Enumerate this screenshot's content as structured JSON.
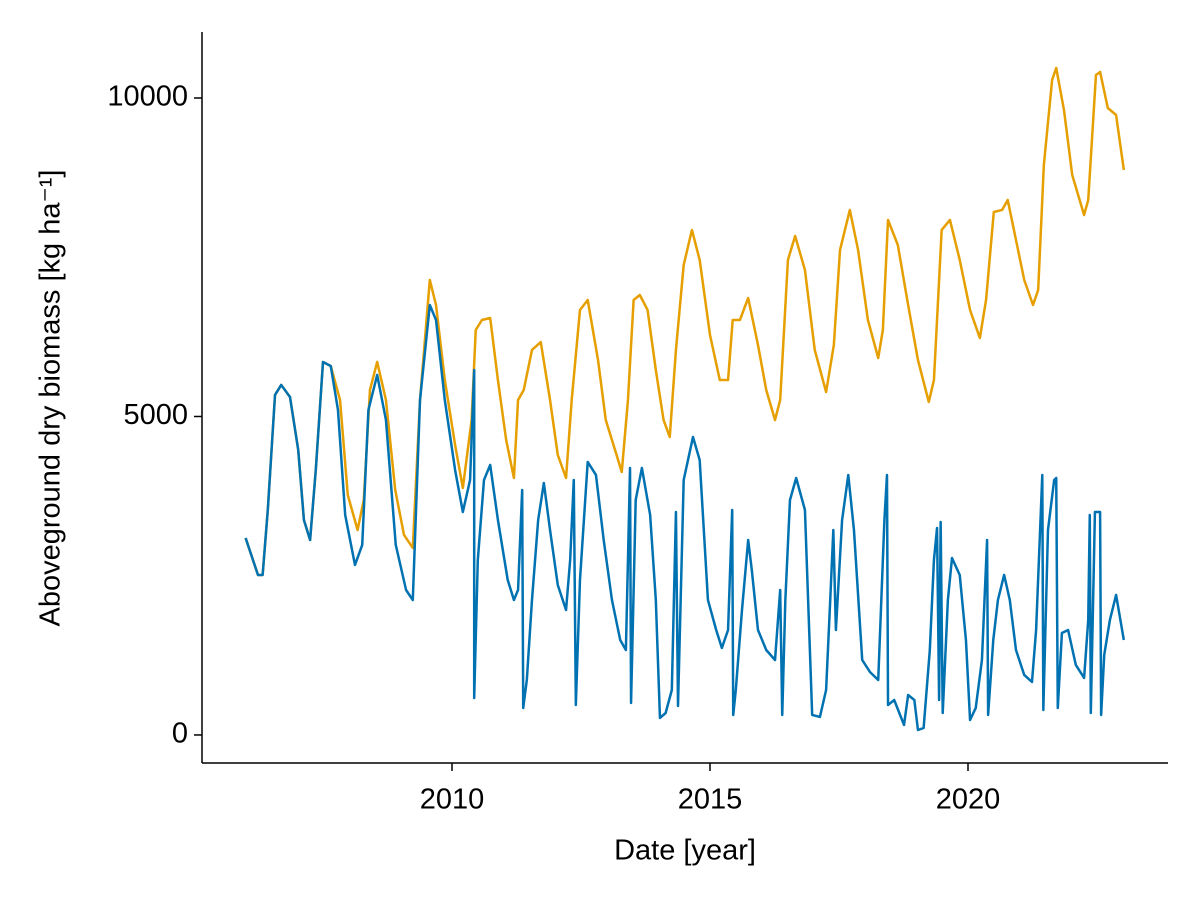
{
  "chart_data": {
    "type": "line",
    "xlabel": "Date [year]",
    "ylabel": "Aboveground dry biomass [kg ha⁻¹]",
    "xlim": [
      2005.155,
      2023.876
    ],
    "xticks": [
      2010,
      2015,
      2020
    ],
    "ylim": [
      -440,
      11036
    ],
    "yticks": [
      0,
      5000,
      10000
    ],
    "grid": false,
    "series": [
      {
        "color": "#e69f00",
        "x": [
          2006.0,
          2006.24,
          2006.33,
          2006.43,
          2006.57,
          2006.69,
          2006.86,
          2007.02,
          2007.13,
          2007.25,
          2007.36,
          2007.5,
          2007.65,
          2007.83,
          2007.98,
          2008.17,
          2008.29,
          2008.41,
          2008.55,
          2008.72,
          2008.9,
          2009.07,
          2009.24,
          2009.38,
          2009.57,
          2009.69,
          2009.86,
          2010.06,
          2010.21,
          2010.38,
          2010.46,
          2010.58,
          2010.74,
          2010.89,
          2011.05,
          2011.2,
          2011.28,
          2011.39,
          2011.55,
          2011.72,
          2011.9,
          2012.05,
          2012.21,
          2012.32,
          2012.48,
          2012.63,
          2012.83,
          2012.98,
          2013.16,
          2013.29,
          2013.41,
          2013.52,
          2013.64,
          2013.79,
          2013.95,
          2014.1,
          2014.22,
          2014.34,
          2014.49,
          2014.65,
          2014.8,
          2015.0,
          2015.19,
          2015.35,
          2015.44,
          2015.58,
          2015.74,
          2015.93,
          2016.09,
          2016.26,
          2016.36,
          2016.51,
          2016.65,
          2016.84,
          2017.03,
          2017.25,
          2017.4,
          2017.52,
          2017.71,
          2017.87,
          2018.06,
          2018.26,
          2018.35,
          2018.45,
          2018.64,
          2018.84,
          2019.03,
          2019.24,
          2019.34,
          2019.49,
          2019.65,
          2019.84,
          2020.04,
          2020.23,
          2020.35,
          2020.5,
          2020.66,
          2020.77,
          2020.93,
          2021.09,
          2021.26,
          2021.36,
          2021.47,
          2021.63,
          2021.71,
          2021.86,
          2022.02,
          2022.25,
          2022.33,
          2022.48,
          2022.56,
          2022.71,
          2022.87,
          2023.02
        ],
        "values": [
          3093,
          2512,
          2512,
          3532,
          5338,
          5495,
          5306,
          4474,
          3375,
          3061,
          4160,
          5856,
          5793,
          5259,
          3768,
          3218,
          3689,
          5416,
          5856,
          5259,
          3846,
          3140,
          2936,
          5259,
          7143,
          6750,
          5573,
          4553,
          3878,
          4945,
          6358,
          6515,
          6546,
          5573,
          4631,
          4034,
          5259,
          5416,
          6044,
          6169,
          5259,
          4396,
          4034,
          5259,
          6672,
          6829,
          5887,
          4945,
          4474,
          4129,
          5259,
          6829,
          6907,
          6672,
          5730,
          4945,
          4678,
          6044,
          7378,
          7928,
          7457,
          6279,
          5573,
          5573,
          6515,
          6515,
          6860,
          6122,
          5416,
          4945,
          5259,
          7457,
          7834,
          7300,
          6044,
          5385,
          6122,
          7614,
          8242,
          7614,
          6515,
          5918,
          6358,
          8085,
          7692,
          6750,
          5887,
          5228,
          5573,
          7928,
          8085,
          7457,
          6672,
          6232,
          6829,
          8210,
          8242,
          8399,
          7771,
          7143,
          6750,
          6986,
          8948,
          10283,
          10471,
          9812,
          8791,
          8163,
          8399,
          10361,
          10408,
          9843,
          9733,
          8870
        ]
      },
      {
        "color": "#0072b2",
        "x": [
          2006.0,
          2006.24,
          2006.33,
          2006.43,
          2006.57,
          2006.69,
          2006.86,
          2007.02,
          2007.13,
          2007.25,
          2007.36,
          2007.5,
          2007.65,
          2007.79,
          2007.93,
          2008.12,
          2008.26,
          2008.38,
          2008.55,
          2008.72,
          2008.91,
          2009.11,
          2009.24,
          2009.38,
          2009.57,
          2009.69,
          2009.86,
          2010.06,
          2010.21,
          2010.35,
          2010.43,
          2010.43,
          2010.5,
          2010.62,
          2010.74,
          2010.89,
          2011.08,
          2011.2,
          2011.28,
          2011.36,
          2011.38,
          2011.45,
          2011.55,
          2011.67,
          2011.78,
          2011.9,
          2012.05,
          2012.21,
          2012.29,
          2012.36,
          2012.4,
          2012.48,
          2012.63,
          2012.79,
          2012.94,
          2013.1,
          2013.26,
          2013.37,
          2013.41,
          2013.45,
          2013.47,
          2013.56,
          2013.68,
          2013.84,
          2013.95,
          2014.03,
          2014.14,
          2014.26,
          2014.34,
          2014.38,
          2014.49,
          2014.67,
          2014.8,
          2014.96,
          2015.12,
          2015.23,
          2015.35,
          2015.43,
          2015.45,
          2015.5,
          2015.62,
          2015.74,
          2015.81,
          2015.93,
          2016.09,
          2016.26,
          2016.36,
          2016.4,
          2016.46,
          2016.55,
          2016.67,
          2016.84,
          2016.98,
          2017.13,
          2017.25,
          2017.33,
          2017.39,
          2017.44,
          2017.56,
          2017.68,
          2017.79,
          2017.95,
          2018.1,
          2018.26,
          2018.38,
          2018.43,
          2018.45,
          2018.57,
          2018.76,
          2018.84,
          2018.96,
          2019.03,
          2019.14,
          2019.26,
          2019.34,
          2019.4,
          2019.44,
          2019.47,
          2019.51,
          2019.61,
          2019.69,
          2019.84,
          2019.96,
          2020.04,
          2020.15,
          2020.27,
          2020.37,
          2020.39,
          2020.49,
          2020.58,
          2020.7,
          2020.81,
          2020.93,
          2021.09,
          2021.24,
          2021.32,
          2021.44,
          2021.46,
          2021.55,
          2021.67,
          2021.71,
          2021.74,
          2021.82,
          2021.94,
          2022.09,
          2022.25,
          2022.33,
          2022.36,
          2022.38,
          2022.46,
          2022.56,
          2022.58,
          2022.64,
          2022.75,
          2022.87,
          2023.02
        ],
        "values": [
          3093,
          2512,
          2512,
          3532,
          5338,
          5495,
          5306,
          4474,
          3375,
          3061,
          4160,
          5856,
          5793,
          5102,
          3454,
          2669,
          2983,
          5102,
          5652,
          4945,
          2983,
          2276,
          2119,
          5259,
          6750,
          6515,
          5259,
          4160,
          3501,
          4003,
          5730,
          581,
          2747,
          4003,
          4239,
          3375,
          2433,
          2119,
          2276,
          3846,
          424,
          863,
          2119,
          3375,
          3956,
          3218,
          2355,
          1962,
          2747,
          4003,
          471,
          2433,
          4286,
          4082,
          3061,
          2119,
          1491,
          1334,
          2747,
          4192,
          502,
          3689,
          4192,
          3454,
          2119,
          267,
          345,
          706,
          3501,
          455,
          4003,
          4678,
          4317,
          2119,
          1648,
          1366,
          1648,
          3532,
          314,
          706,
          1962,
          3061,
          2590,
          1648,
          1334,
          1177,
          2276,
          314,
          2119,
          3689,
          4034,
          3532,
          314,
          283,
          706,
          2119,
          3218,
          1648,
          3375,
          4082,
          3218,
          1177,
          989,
          863,
          3375,
          4082,
          471,
          549,
          157,
          628,
          549,
          78,
          110,
          1334,
          2747,
          3250,
          549,
          3344,
          345,
          2119,
          2779,
          2512,
          1491,
          235,
          424,
          1177,
          3061,
          314,
          1491,
          2119,
          2512,
          2119,
          1334,
          942,
          832,
          1648,
          4082,
          392,
          3218,
          4003,
          4034,
          424,
          1601,
          1648,
          1099,
          895,
          1805,
          3454,
          345,
          3501,
          3501,
          314,
          1256,
          1805,
          2198,
          1491
        ]
      }
    ]
  }
}
